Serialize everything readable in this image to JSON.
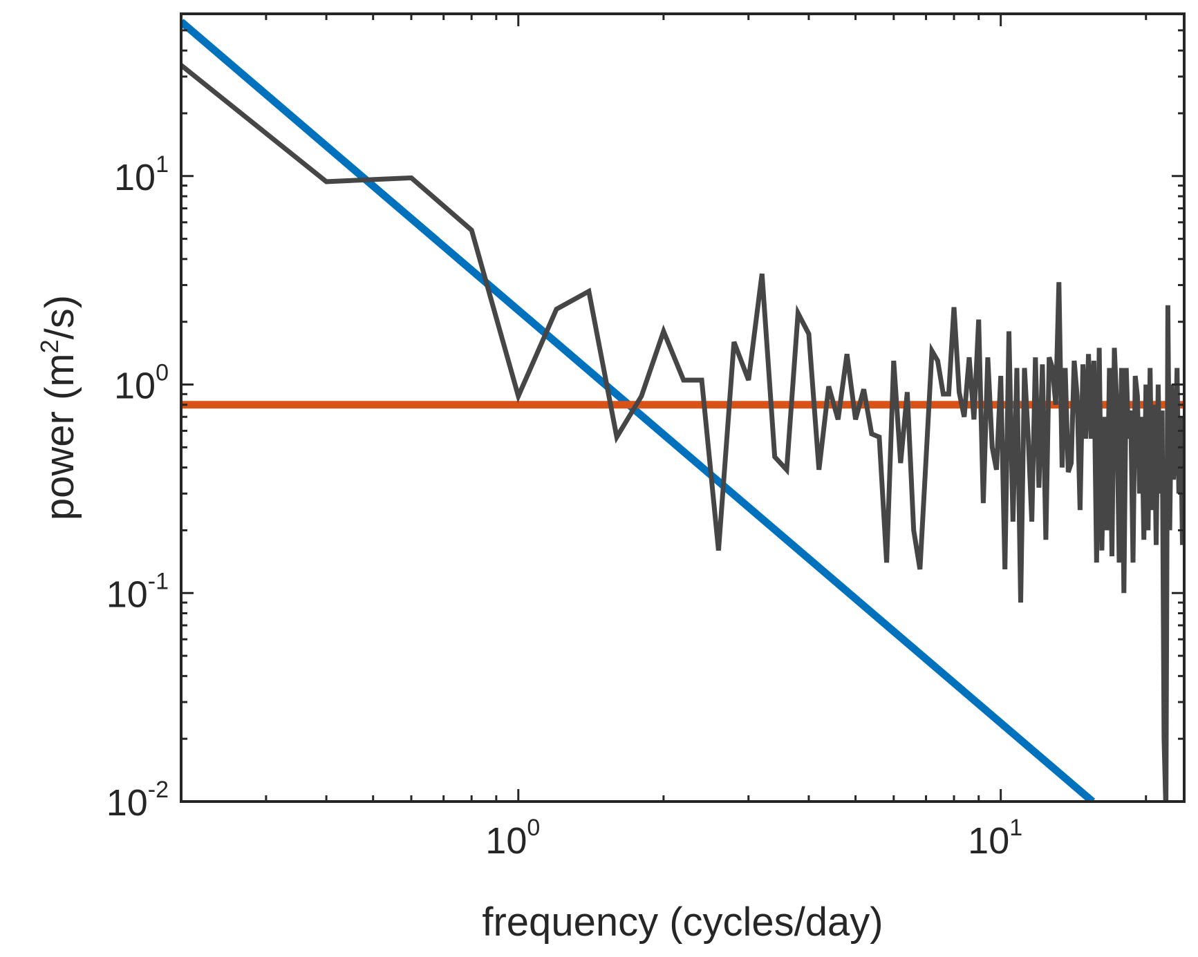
{
  "chart_data": {
    "type": "line",
    "title": "",
    "xlabel": "frequency (cycles/day)",
    "ylabel_parts": {
      "prefix": "power (m",
      "sup": "2",
      "suffix": "/s)"
    },
    "xscale": "log",
    "yscale": "log",
    "xlim": [
      0.2,
      24
    ],
    "ylim": [
      0.01,
      60
    ],
    "grid": false,
    "legend": "none",
    "x_ticks": [
      {
        "value": 1,
        "base": "10",
        "exp": "0"
      },
      {
        "value": 10,
        "base": "10",
        "exp": "1"
      }
    ],
    "y_ticks": [
      {
        "value": 0.01,
        "base": "10",
        "exp": "-2"
      },
      {
        "value": 0.1,
        "base": "10",
        "exp": "-1"
      },
      {
        "value": 1,
        "base": "10",
        "exp": "0"
      },
      {
        "value": 10,
        "base": "10",
        "exp": "1"
      }
    ],
    "series": [
      {
        "name": "blue-power-law",
        "color": "#0072BD",
        "x": [
          0.2,
          15.5
        ],
        "y": [
          55,
          0.01
        ]
      },
      {
        "name": "orange-white-noise",
        "color": "#D95319",
        "x": [
          0.2,
          24
        ],
        "y": [
          0.8,
          0.8
        ]
      },
      {
        "name": "observed-spectrum",
        "color": "#464646",
        "x": [
          0.2,
          0.4,
          0.6,
          0.8,
          1.0,
          1.2,
          1.4,
          1.6,
          1.8,
          2.0,
          2.2,
          2.4,
          2.6,
          2.8,
          3.0,
          3.2,
          3.4,
          3.6,
          3.8,
          4.0,
          4.2,
          4.4,
          4.6,
          4.8,
          5.0,
          5.2,
          5.4,
          5.6,
          5.8,
          6.0,
          6.2,
          6.4,
          6.6,
          6.8,
          7.0,
          7.2,
          7.4,
          7.6,
          7.8,
          8.0,
          8.2,
          8.4,
          8.6,
          8.8,
          9.0,
          9.2,
          9.4,
          9.6,
          9.8,
          10.0,
          10.2,
          10.4,
          10.6,
          10.8,
          11.0,
          11.2,
          11.4,
          11.6,
          11.8,
          12.0,
          12.2,
          12.4,
          12.6,
          12.8,
          13.0,
          13.2,
          13.4,
          13.6,
          13.8,
          14.0,
          14.2,
          14.4,
          14.6,
          14.8,
          15.0,
          15.2,
          15.4,
          15.6,
          15.8,
          16.0,
          16.2,
          16.4,
          16.6,
          16.8,
          17.0,
          17.2,
          17.4,
          17.6,
          17.8,
          18.0,
          18.2,
          18.4,
          18.6,
          18.8,
          19.0,
          19.2,
          19.4,
          19.6,
          19.8,
          20.0,
          20.2,
          20.4,
          20.6,
          20.8,
          21.0,
          21.2,
          21.4,
          21.6,
          21.8,
          22.0,
          22.2,
          22.4,
          22.6,
          22.8,
          23.0,
          23.2,
          23.4,
          23.6,
          23.8,
          24.0
        ],
        "y": [
          34,
          9.4,
          9.8,
          5.5,
          0.88,
          2.3,
          2.8,
          0.56,
          0.88,
          1.8,
          1.05,
          1.05,
          0.16,
          1.6,
          1.05,
          3.4,
          0.45,
          0.39,
          2.2,
          1.75,
          0.39,
          0.98,
          0.68,
          1.4,
          0.68,
          0.95,
          0.58,
          0.56,
          0.14,
          1.3,
          0.42,
          0.92,
          0.2,
          0.13,
          0.44,
          1.45,
          1.3,
          0.9,
          0.9,
          2.35,
          0.92,
          0.7,
          1.35,
          0.68,
          2.05,
          0.27,
          1.35,
          0.5,
          0.39,
          1.1,
          0.13,
          1.8,
          0.22,
          1.2,
          0.09,
          1.2,
          0.56,
          0.22,
          1.35,
          0.32,
          1.25,
          0.18,
          1.35,
          1.2,
          0.8,
          3.1,
          0.4,
          1.2,
          0.38,
          0.42,
          1.3,
          0.88,
          0.25,
          1.25,
          0.55,
          1.4,
          0.55,
          1.3,
          0.14,
          1.5,
          0.16,
          0.7,
          0.2,
          1.2,
          0.15,
          1.5,
          0.8,
          0.14,
          1.2,
          0.1,
          1.2,
          0.55,
          0.75,
          0.14,
          1.1,
          0.88,
          0.3,
          0.7,
          0.18,
          1.0,
          0.2,
          1.2,
          0.25,
          0.8,
          0.17,
          1.0,
          0.3,
          0.75,
          0.02,
          0.009,
          2.4,
          0.2,
          1.0,
          0.35,
          0.5,
          1.2,
          0.3,
          0.7,
          0.17,
          0.48
        ]
      }
    ]
  }
}
